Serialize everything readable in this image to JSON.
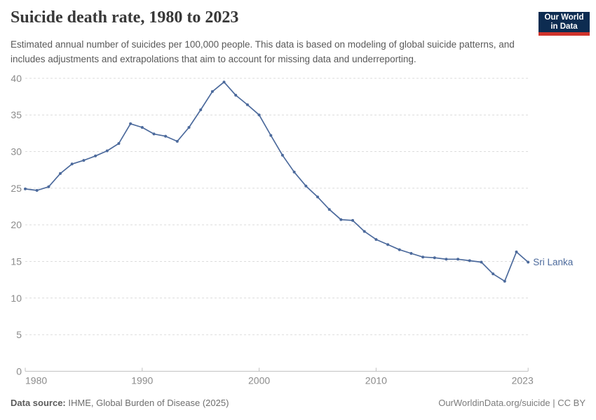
{
  "header": {
    "title": "Suicide death rate, 1980 to 2023",
    "subtitle": "Estimated annual number of suicides per 100,000 people. This data is based on modeling of global suicide patterns, and includes adjustments and extrapolations that aim to account for missing data and underreporting.",
    "logo": {
      "line1": "Our World",
      "line2": "in Data",
      "bg_color": "#0d2c51",
      "accent_color": "#d0342c"
    }
  },
  "chart_data": {
    "type": "line",
    "title": "Suicide death rate, 1980 to 2023",
    "xlabel": "",
    "ylabel": "",
    "xlim": [
      1980,
      2023
    ],
    "ylim": [
      0,
      40
    ],
    "x_ticks": [
      1980,
      1990,
      2000,
      2010,
      2023
    ],
    "y_ticks": [
      0,
      5,
      10,
      15,
      20,
      25,
      30,
      35,
      40
    ],
    "grid": "horizontal dashed gridlines, solid bottom axis",
    "legend": "entity label at line end",
    "x": [
      1980,
      1981,
      1982,
      1983,
      1984,
      1985,
      1986,
      1987,
      1988,
      1989,
      1990,
      1991,
      1992,
      1993,
      1994,
      1995,
      1996,
      1997,
      1998,
      1999,
      2000,
      2001,
      2002,
      2003,
      2004,
      2005,
      2006,
      2007,
      2008,
      2009,
      2010,
      2011,
      2012,
      2013,
      2014,
      2015,
      2016,
      2017,
      2018,
      2019,
      2020,
      2021,
      2022,
      2023
    ],
    "series": [
      {
        "name": "Sri Lanka",
        "color": "#4c6a9c",
        "values": [
          24.9,
          24.7,
          25.2,
          27.0,
          28.3,
          28.8,
          29.4,
          30.1,
          31.1,
          33.8,
          33.3,
          32.4,
          32.1,
          31.4,
          33.3,
          35.7,
          38.2,
          39.5,
          37.7,
          36.4,
          35.0,
          32.2,
          29.5,
          27.2,
          25.3,
          23.8,
          22.1,
          20.7,
          20.6,
          19.1,
          18.0,
          17.3,
          16.6,
          16.1,
          15.6,
          15.5,
          15.3,
          15.3,
          15.1,
          14.9,
          13.3,
          12.3,
          16.3,
          14.9
        ]
      }
    ],
    "style": {
      "gridline_color": "#dcdcdc",
      "axis_color": "#c0c0c0",
      "tick_label_color": "#8b8b8b"
    }
  },
  "footer": {
    "source_label": "Data source:",
    "source_text": " IHME, Global Burden of Disease (2025)",
    "credit": "OurWorldinData.org/suicide | CC BY"
  }
}
